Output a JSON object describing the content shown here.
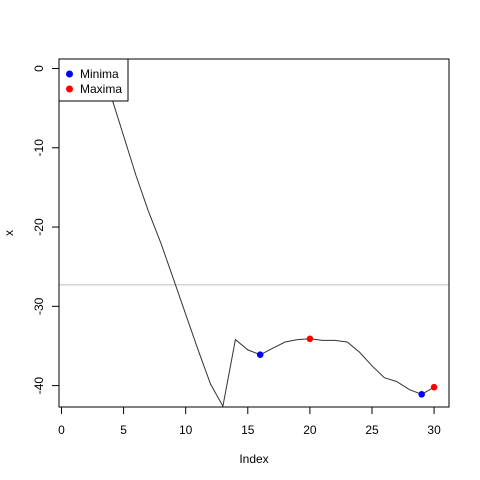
{
  "chart_data": {
    "type": "line",
    "xlabel": "Index",
    "ylabel": "x",
    "xlim": [
      -0.2,
      31.2
    ],
    "ylim": [
      -42.7,
      1.2
    ],
    "x_ticks": [
      0,
      5,
      10,
      15,
      20,
      25,
      30
    ],
    "y_ticks": [
      0,
      -10,
      -20,
      -30,
      -40
    ],
    "grid": false,
    "legend_position": "top-left",
    "hline_y": -27.3,
    "colors": {
      "line": "#333333",
      "hline": "#bebebe",
      "minima": "#0000ff",
      "maxima": "#ff0000"
    },
    "series": [
      {
        "x": [
          1,
          2,
          3,
          4,
          5,
          6,
          7,
          8,
          9,
          10,
          11,
          12,
          13,
          14,
          15,
          16,
          17,
          18,
          19,
          20,
          21,
          22,
          23,
          24,
          25,
          26,
          27,
          28,
          29,
          30
        ],
        "values": [
          1.0,
          0.8,
          0.0,
          -3.5,
          -8.5,
          -13.5,
          -18.0,
          -22.0,
          -26.5,
          -31.0,
          -35.5,
          -39.8,
          -42.6,
          -34.2,
          -35.5,
          -36.1,
          -35.3,
          -34.5,
          -34.2,
          -34.1,
          -34.3,
          -34.3,
          -34.5,
          -35.8,
          -37.5,
          -39.0,
          -39.5,
          -40.5,
          -41.1,
          -40.2
        ],
        "connect_from_index": 3
      }
    ],
    "minima": {
      "name": "Minima",
      "x": [
        16,
        29
      ],
      "y": [
        -36.1,
        -41.1
      ]
    },
    "maxima": {
      "name": "Maxima",
      "x": [
        20,
        30
      ],
      "y": [
        -34.1,
        -40.2
      ]
    }
  }
}
